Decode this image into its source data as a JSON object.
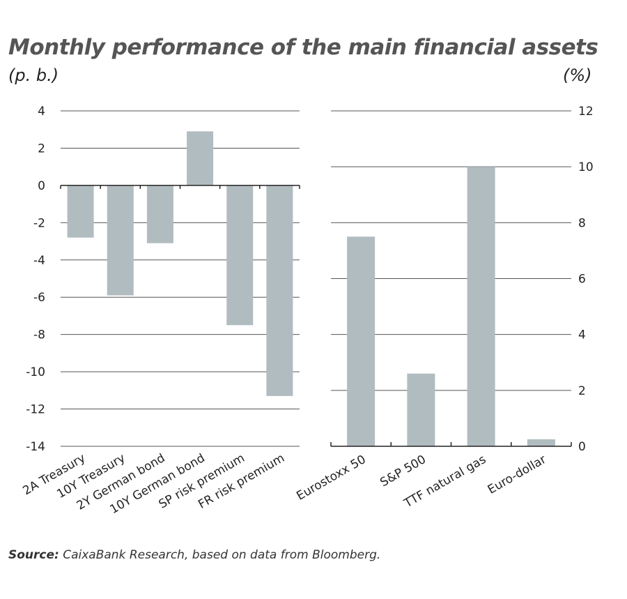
{
  "title": "Monthly performance of the main financial assets",
  "source_label": "Source:",
  "source_text": "CaixaBank Research, based on data from Bloomberg.",
  "bar_color": "#b1bcc0",
  "chart_data": [
    {
      "type": "bar",
      "unit": "(p. b.)",
      "categories": [
        "2A Treasury",
        "10Y Treasury",
        "2Y German bond",
        "10Y German bond",
        "SP risk premium",
        "FR risk premium"
      ],
      "values": [
        -2.8,
        -5.9,
        -3.1,
        2.9,
        -7.5,
        -11.3
      ],
      "ylim": [
        -14,
        4
      ],
      "yticks": [
        4,
        2,
        0,
        -2,
        -4,
        -6,
        -8,
        -10,
        -12,
        -14
      ],
      "axis_side": "left",
      "grid": true
    },
    {
      "type": "bar",
      "unit": "(%)",
      "categories": [
        "Eurostoxx 50",
        "S&P 500",
        "TTF natural gas",
        "Euro-dollar"
      ],
      "values": [
        7.5,
        2.6,
        10.0,
        0.25
      ],
      "ylim": [
        0,
        12
      ],
      "yticks": [
        12,
        10,
        8,
        6,
        4,
        2,
        0
      ],
      "axis_side": "right",
      "grid": true
    }
  ]
}
